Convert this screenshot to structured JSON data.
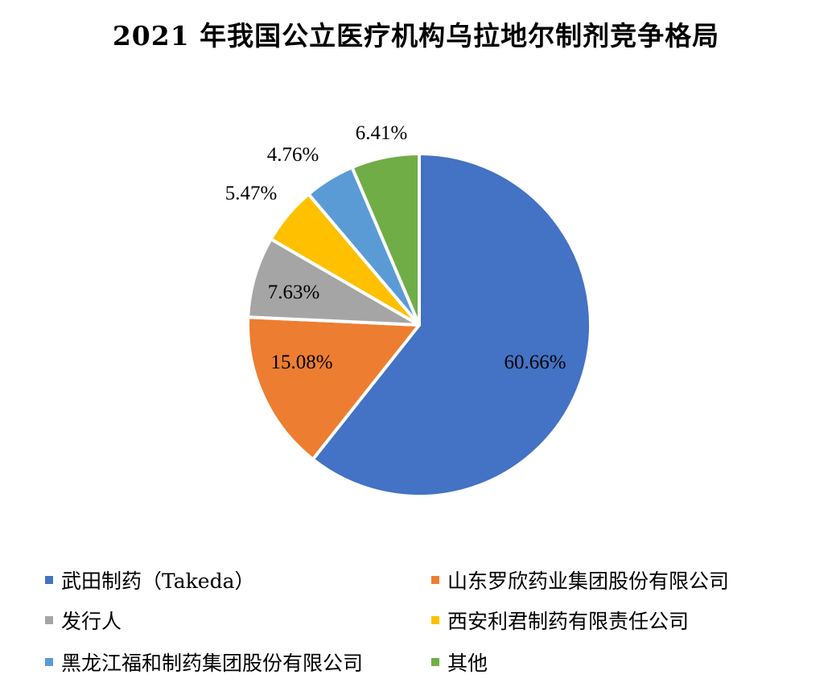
{
  "chart_data": {
    "type": "pie",
    "title": "2021 年我国公立医疗机构乌拉地尔制剂竞争格局",
    "slices": [
      {
        "label": "武田制药（Takeda）",
        "value": 60.66,
        "display": "60.66%",
        "color": "#4472C4"
      },
      {
        "label": "山东罗欣药业集团股份有限公司",
        "value": 15.08,
        "display": "15.08%",
        "color": "#ED7D31"
      },
      {
        "label": "发行人",
        "value": 7.63,
        "display": "7.63%",
        "color": "#A5A5A5"
      },
      {
        "label": "西安利君制药有限责任公司",
        "value": 5.47,
        "display": "5.47%",
        "color": "#FFC000"
      },
      {
        "label": "黑龙江福和制药集团股份有限公司",
        "value": 4.76,
        "display": "4.76%",
        "color": "#5B9BD5"
      },
      {
        "label": "其他",
        "value": 6.41,
        "display": "6.41%",
        "color": "#70AD47"
      }
    ],
    "legend_position": "bottom"
  }
}
